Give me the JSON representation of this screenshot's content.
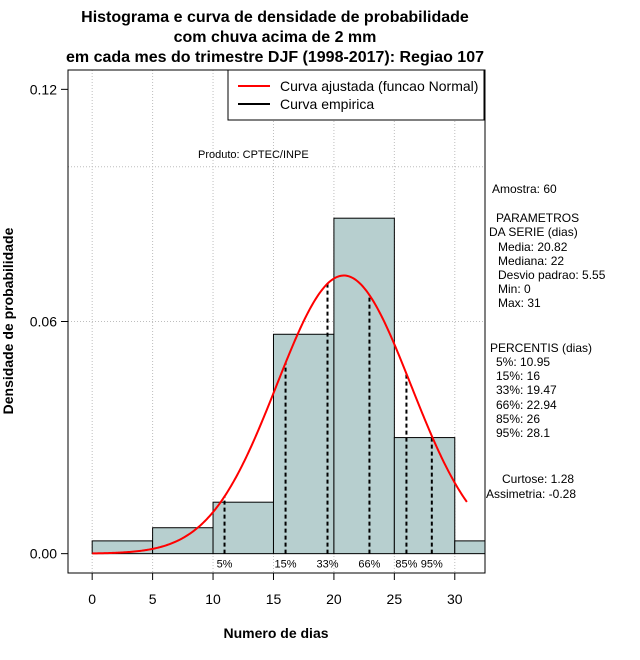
{
  "chart_data": {
    "type": "bar",
    "title": [
      "Histograma e curva de densidade de probabilidade",
      "com chuva acima de 2 mm",
      "em cada mes do trimestre DJF (1998-2017): Regiao 107"
    ],
    "xlabel": "Numero de dias",
    "ylabel": "Densidade de probabilidade",
    "xlim": [
      -2,
      32.5
    ],
    "ylim": [
      -0.005,
      0.125
    ],
    "x_ticks": [
      0,
      5,
      10,
      15,
      20,
      25,
      30
    ],
    "y_ticks": [
      0.0,
      0.06,
      0.12
    ],
    "y_tick_labels": [
      "0.00",
      "0.06",
      "0.12"
    ],
    "y_gridlines": [
      0.06,
      0.1
    ],
    "bins": [
      {
        "x0": 0,
        "x1": 5,
        "density": 0.0033
      },
      {
        "x0": 5,
        "x1": 10,
        "density": 0.0067
      },
      {
        "x0": 10,
        "x1": 15,
        "density": 0.0133
      },
      {
        "x0": 15,
        "x1": 20,
        "density": 0.0567
      },
      {
        "x0": 20,
        "x1": 25,
        "density": 0.0867
      },
      {
        "x0": 25,
        "x1": 30,
        "density": 0.03
      },
      {
        "x0": 30,
        "x1": 35,
        "density": 0.0033
      }
    ],
    "normal_fit": {
      "mean": 20.82,
      "sd": 5.55,
      "x_from": 0,
      "x_to": 31
    },
    "percentile_lines": [
      {
        "label": "5%",
        "x": 10.95
      },
      {
        "label": "15%",
        "x": 16
      },
      {
        "label": "33%",
        "x": 19.47
      },
      {
        "label": "66%",
        "x": 22.94
      },
      {
        "label": "85%",
        "x": 26
      },
      {
        "label": "95%",
        "x": 28.1
      }
    ],
    "legend": [
      {
        "label": "Curva ajustada (funcao Normal)",
        "color": "#ff0000"
      },
      {
        "label": "Curva empirica",
        "color": "#000000"
      }
    ],
    "legend_position": "top-right",
    "bar_color": "#b7cfcf",
    "curve_color": "#ff0000",
    "grid_color": "#bebebe",
    "annotation": "Produto: CPTEC/INPE"
  },
  "side_panel": {
    "amostra": "Amostra: 60",
    "parametros_title": [
      "PARAMETROS",
      "DA SERIE (dias)"
    ],
    "parametros": [
      "Media: 20.82",
      "Mediana: 22",
      "Desvio padrao: 5.55",
      "Min: 0",
      "Max: 31"
    ],
    "percentis_title": "PERCENTIS (dias)",
    "percentis": [
      "5%: 10.95",
      "15%: 16",
      "33%: 19.47",
      "66%: 22.94",
      "85%: 26",
      "95%: 28.1"
    ],
    "curtose": "Curtose: 1.28",
    "assimetria": "Assimetria: -0.28"
  }
}
